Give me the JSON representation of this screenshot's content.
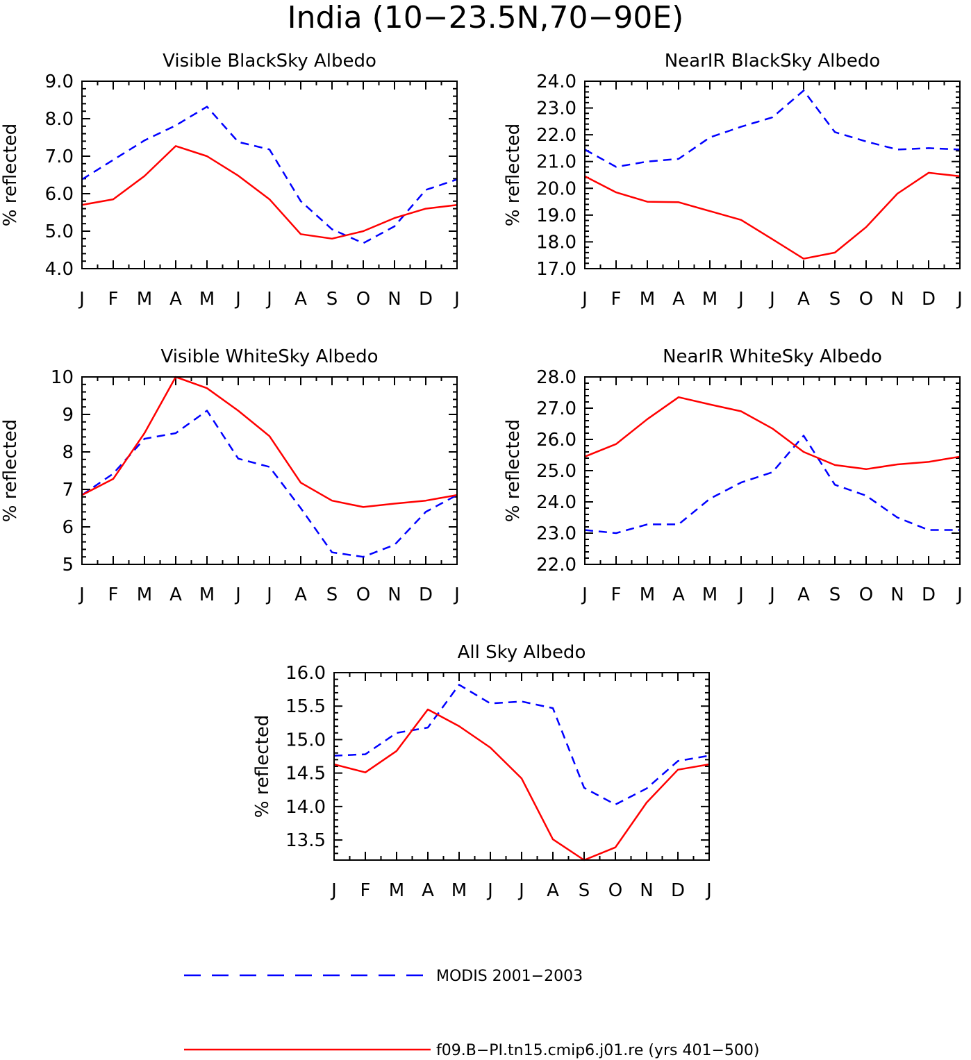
{
  "title": "India (10−23.5N,70−90E)",
  "colors": {
    "modis": "#0000ff",
    "model": "#ff0000",
    "axis": "#000000"
  },
  "legend": [
    {
      "key": "modis",
      "label": "MODIS 2001−2003",
      "style": "dashed"
    },
    {
      "key": "model",
      "label": "f09.B−PI.tn15.cmip6.j01.re (yrs 401−500)",
      "style": "solid"
    }
  ],
  "chart_data": [
    {
      "type": "line",
      "title": "Visible BlackSky Albedo",
      "ylabel": "% reflected",
      "categories": [
        "J",
        "F",
        "M",
        "A",
        "M",
        "J",
        "J",
        "A",
        "S",
        "O",
        "N",
        "D",
        "J"
      ],
      "ylim": [
        4.0,
        9.0
      ],
      "yticks": [
        "4.0",
        "5.0",
        "6.0",
        "7.0",
        "8.0",
        "9.0"
      ],
      "series": [
        {
          "key": "modis",
          "values": [
            6.38,
            6.9,
            7.42,
            7.82,
            8.32,
            7.38,
            7.18,
            5.8,
            5.05,
            4.68,
            5.13,
            6.1,
            6.38
          ]
        },
        {
          "key": "model",
          "values": [
            5.7,
            5.85,
            6.47,
            7.27,
            7.0,
            6.48,
            5.85,
            4.92,
            4.8,
            5.0,
            5.35,
            5.6,
            5.7
          ]
        }
      ]
    },
    {
      "type": "line",
      "title": "NearIR BlackSky Albedo",
      "ylabel": "% reflected",
      "categories": [
        "J",
        "F",
        "M",
        "A",
        "M",
        "J",
        "J",
        "A",
        "S",
        "O",
        "N",
        "D",
        "J"
      ],
      "ylim": [
        17.0,
        24.0
      ],
      "yticks": [
        "17.0",
        "18.0",
        "19.0",
        "20.0",
        "21.0",
        "22.0",
        "23.0",
        "24.0"
      ],
      "series": [
        {
          "key": "modis",
          "values": [
            21.45,
            20.8,
            21.0,
            21.1,
            21.9,
            22.3,
            22.65,
            23.65,
            22.1,
            21.75,
            21.45,
            21.5,
            21.45
          ]
        },
        {
          "key": "model",
          "values": [
            20.45,
            19.85,
            19.5,
            19.48,
            19.15,
            18.82,
            18.1,
            17.37,
            17.6,
            18.55,
            19.8,
            20.58,
            20.45
          ]
        }
      ]
    },
    {
      "type": "line",
      "title": "Visible WhiteSky Albedo",
      "ylabel": "% reflected",
      "categories": [
        "J",
        "F",
        "M",
        "A",
        "M",
        "J",
        "J",
        "A",
        "S",
        "O",
        "N",
        "D",
        "J"
      ],
      "ylim": [
        5,
        10
      ],
      "yticks": [
        "5",
        "6",
        "7",
        "8",
        "9",
        "10"
      ],
      "series": [
        {
          "key": "modis",
          "values": [
            6.85,
            7.42,
            8.35,
            8.5,
            9.1,
            7.82,
            7.6,
            6.5,
            5.32,
            5.2,
            5.52,
            6.4,
            6.85
          ]
        },
        {
          "key": "model",
          "values": [
            6.85,
            7.28,
            8.5,
            10.0,
            9.7,
            9.1,
            8.42,
            7.18,
            6.7,
            6.53,
            6.62,
            6.7,
            6.85
          ]
        }
      ]
    },
    {
      "type": "line",
      "title": "NearIR WhiteSky Albedo",
      "ylabel": "% reflected",
      "categories": [
        "J",
        "F",
        "M",
        "A",
        "M",
        "J",
        "J",
        "A",
        "S",
        "O",
        "N",
        "D",
        "J"
      ],
      "ylim": [
        22.0,
        28.0
      ],
      "yticks": [
        "22.0",
        "23.0",
        "24.0",
        "25.0",
        "26.0",
        "27.0",
        "28.0"
      ],
      "series": [
        {
          "key": "modis",
          "values": [
            23.1,
            23.0,
            23.28,
            23.28,
            24.1,
            24.62,
            24.95,
            26.12,
            24.55,
            24.2,
            23.5,
            23.1,
            23.1
          ]
        },
        {
          "key": "model",
          "values": [
            25.45,
            25.85,
            26.65,
            27.35,
            27.12,
            26.9,
            26.35,
            25.6,
            25.18,
            25.05,
            25.2,
            25.28,
            25.45
          ]
        }
      ]
    },
    {
      "type": "line",
      "title": "All Sky Albedo",
      "ylabel": "% reflected",
      "categories": [
        "J",
        "F",
        "M",
        "A",
        "M",
        "J",
        "J",
        "A",
        "S",
        "O",
        "N",
        "D",
        "J"
      ],
      "ylim": [
        13.2,
        16.0
      ],
      "yticks": [
        "13.5",
        "14.0",
        "14.5",
        "15.0",
        "15.5",
        "16.0"
      ],
      "series": [
        {
          "key": "modis",
          "values": [
            14.76,
            14.78,
            15.1,
            15.18,
            15.82,
            15.54,
            15.57,
            15.47,
            14.28,
            14.03,
            14.27,
            14.68,
            14.76
          ]
        },
        {
          "key": "model",
          "values": [
            14.63,
            14.51,
            14.83,
            15.45,
            15.2,
            14.88,
            14.42,
            13.51,
            13.2,
            13.39,
            14.06,
            14.55,
            14.63
          ]
        }
      ]
    }
  ]
}
